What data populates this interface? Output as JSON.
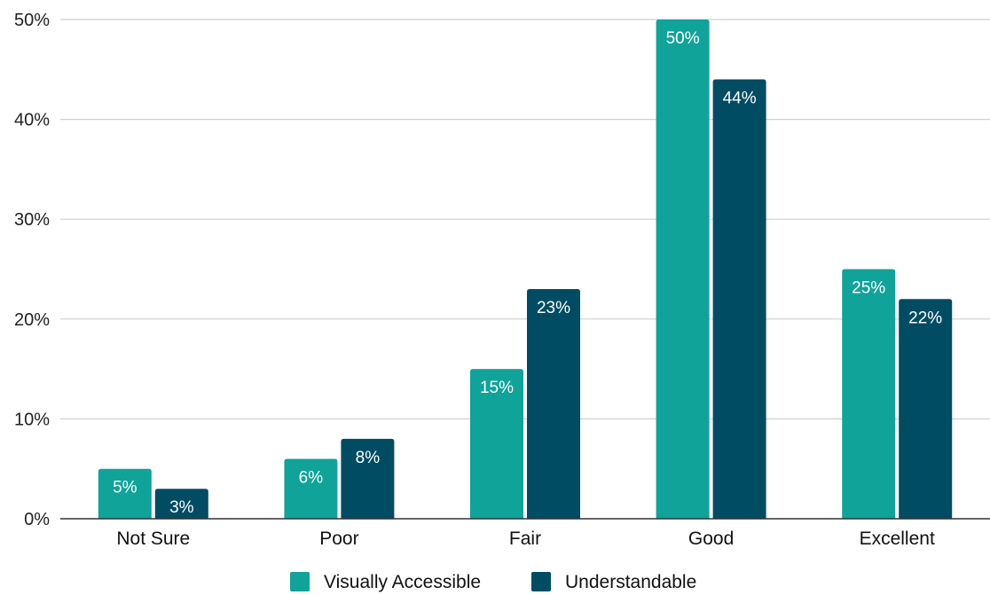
{
  "chart_data": {
    "type": "bar",
    "categories": [
      "Not Sure",
      "Poor",
      "Fair",
      "Good",
      "Excellent"
    ],
    "series": [
      {
        "name": "Visually Accessible",
        "values": [
          5,
          6,
          15,
          50,
          25
        ],
        "labels": [
          "5%",
          "6%",
          "15%",
          "50%",
          "25%"
        ],
        "color": "#10a39a"
      },
      {
        "name": "Understandable",
        "values": [
          3,
          8,
          23,
          44,
          22
        ],
        "labels": [
          "3%",
          "8%",
          "23%",
          "44%",
          "22%"
        ],
        "color": "#004c63"
      }
    ],
    "title": "",
    "xlabel": "",
    "ylabel": "",
    "ylim": [
      0,
      50
    ],
    "yticks": [
      "0%",
      "10%",
      "20%",
      "30%",
      "40%",
      "50%"
    ],
    "grid": true,
    "legend_position": "bottom"
  }
}
